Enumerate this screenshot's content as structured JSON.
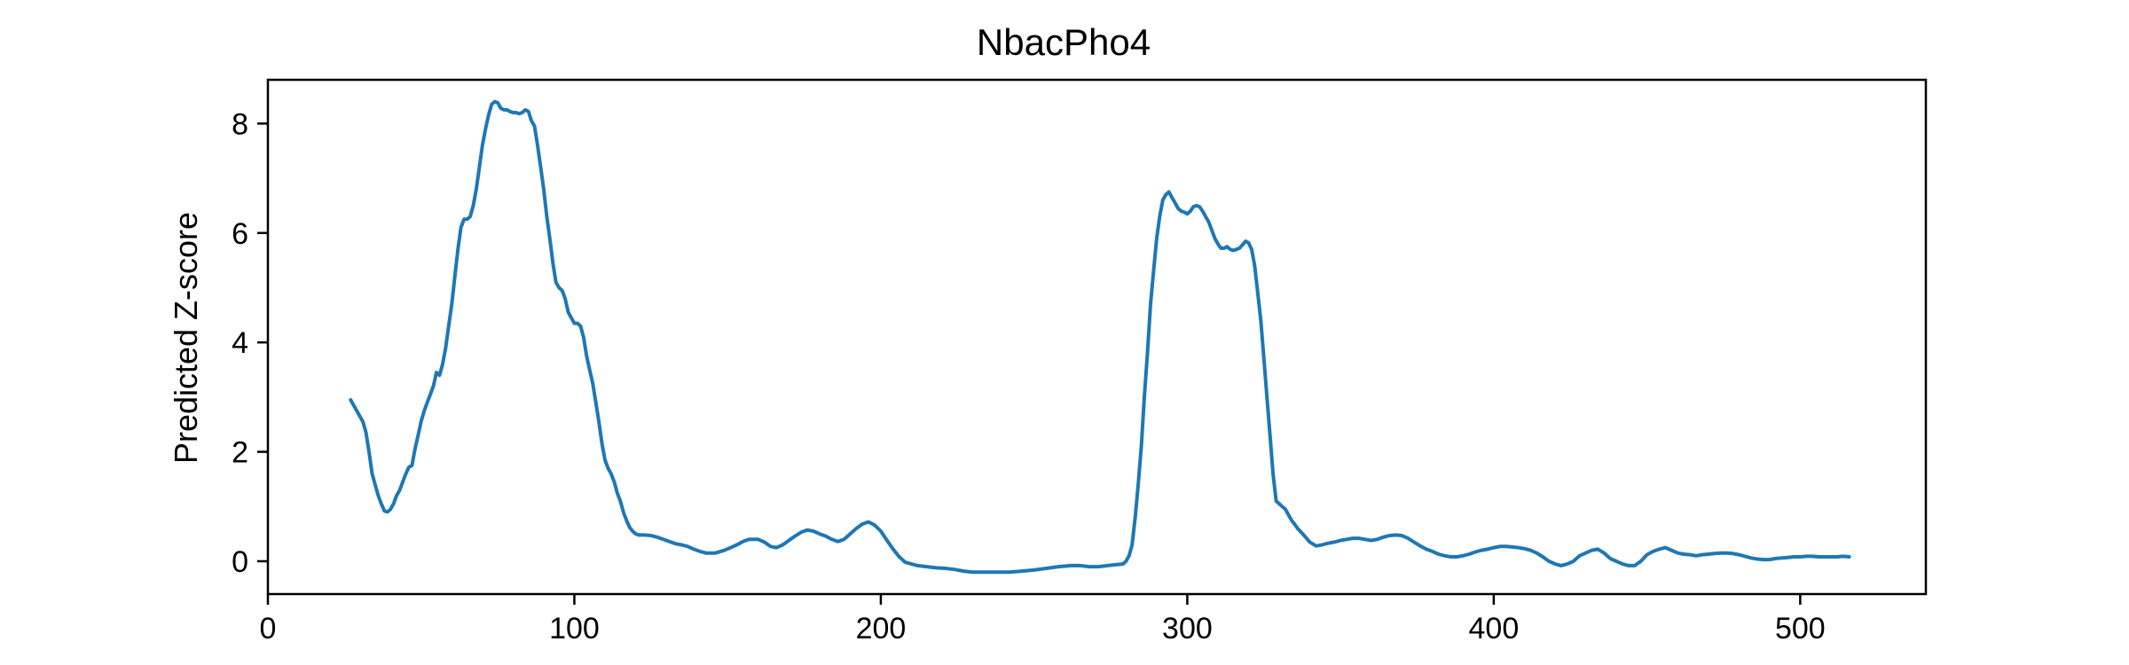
{
  "chart_data": {
    "type": "line",
    "title": "NbacPho4",
    "xlabel": "",
    "ylabel": "Predicted Z-score",
    "xlim": [
      0,
      541
    ],
    "ylim": [
      -0.6,
      8.8
    ],
    "xticks": [
      0,
      100,
      200,
      300,
      400,
      500
    ],
    "yticks": [
      0,
      2,
      4,
      6,
      8
    ],
    "grid": false,
    "line_color": "#1f77b4",
    "series": [
      {
        "points": [
          [
            27,
            2.95
          ],
          [
            29,
            2.75
          ],
          [
            31,
            2.55
          ],
          [
            32,
            2.35
          ],
          [
            33,
            2.0
          ],
          [
            34,
            1.6
          ],
          [
            35,
            1.4
          ],
          [
            36,
            1.2
          ],
          [
            37,
            1.05
          ],
          [
            38,
            0.92
          ],
          [
            39,
            0.9
          ],
          [
            40,
            0.95
          ],
          [
            41,
            1.05
          ],
          [
            42,
            1.2
          ],
          [
            43,
            1.3
          ],
          [
            44,
            1.45
          ],
          [
            45,
            1.6
          ],
          [
            46,
            1.72
          ],
          [
            47,
            1.75
          ],
          [
            48,
            2.05
          ],
          [
            49,
            2.3
          ],
          [
            50,
            2.55
          ],
          [
            51,
            2.75
          ],
          [
            52,
            2.9
          ],
          [
            53,
            3.05
          ],
          [
            54,
            3.2
          ],
          [
            55,
            3.45
          ],
          [
            56,
            3.4
          ],
          [
            57,
            3.6
          ],
          [
            58,
            3.9
          ],
          [
            59,
            4.3
          ],
          [
            60,
            4.7
          ],
          [
            61,
            5.2
          ],
          [
            62,
            5.7
          ],
          [
            63,
            6.1
          ],
          [
            64,
            6.25
          ],
          [
            65,
            6.25
          ],
          [
            66,
            6.3
          ],
          [
            67,
            6.5
          ],
          [
            68,
            6.8
          ],
          [
            69,
            7.2
          ],
          [
            70,
            7.6
          ],
          [
            71,
            7.9
          ],
          [
            72,
            8.15
          ],
          [
            73,
            8.35
          ],
          [
            74,
            8.4
          ],
          [
            75,
            8.38
          ],
          [
            76,
            8.28
          ],
          [
            77,
            8.25
          ],
          [
            78,
            8.25
          ],
          [
            79,
            8.22
          ],
          [
            80,
            8.2
          ],
          [
            81,
            8.2
          ],
          [
            82,
            8.18
          ],
          [
            83,
            8.2
          ],
          [
            84,
            8.25
          ],
          [
            85,
            8.22
          ],
          [
            86,
            8.05
          ],
          [
            87,
            7.95
          ],
          [
            88,
            7.6
          ],
          [
            89,
            7.2
          ],
          [
            90,
            6.8
          ],
          [
            91,
            6.3
          ],
          [
            92,
            5.9
          ],
          [
            93,
            5.45
          ],
          [
            94,
            5.1
          ],
          [
            95,
            5.0
          ],
          [
            96,
            4.95
          ],
          [
            97,
            4.8
          ],
          [
            98,
            4.55
          ],
          [
            99,
            4.45
          ],
          [
            100,
            4.35
          ],
          [
            101,
            4.35
          ],
          [
            102,
            4.3
          ],
          [
            103,
            4.1
          ],
          [
            104,
            3.75
          ],
          [
            105,
            3.5
          ],
          [
            106,
            3.25
          ],
          [
            107,
            2.9
          ],
          [
            108,
            2.55
          ],
          [
            109,
            2.15
          ],
          [
            110,
            1.85
          ],
          [
            111,
            1.7
          ],
          [
            112,
            1.6
          ],
          [
            113,
            1.45
          ],
          [
            114,
            1.25
          ],
          [
            115,
            1.1
          ],
          [
            116,
            0.9
          ],
          [
            117,
            0.75
          ],
          [
            118,
            0.62
          ],
          [
            119,
            0.55
          ],
          [
            120,
            0.5
          ],
          [
            121,
            0.48
          ],
          [
            123,
            0.48
          ],
          [
            125,
            0.47
          ],
          [
            127,
            0.44
          ],
          [
            129,
            0.4
          ],
          [
            131,
            0.36
          ],
          [
            133,
            0.32
          ],
          [
            135,
            0.3
          ],
          [
            137,
            0.27
          ],
          [
            139,
            0.22
          ],
          [
            141,
            0.18
          ],
          [
            143,
            0.15
          ],
          [
            146,
            0.15
          ],
          [
            149,
            0.2
          ],
          [
            151,
            0.25
          ],
          [
            153,
            0.3
          ],
          [
            155,
            0.36
          ],
          [
            157,
            0.4
          ],
          [
            160,
            0.4
          ],
          [
            162,
            0.35
          ],
          [
            164,
            0.27
          ],
          [
            166,
            0.25
          ],
          [
            168,
            0.3
          ],
          [
            170,
            0.38
          ],
          [
            172,
            0.46
          ],
          [
            174,
            0.53
          ],
          [
            176,
            0.57
          ],
          [
            178,
            0.55
          ],
          [
            180,
            0.5
          ],
          [
            182,
            0.46
          ],
          [
            184,
            0.4
          ],
          [
            186,
            0.36
          ],
          [
            188,
            0.4
          ],
          [
            190,
            0.5
          ],
          [
            192,
            0.6
          ],
          [
            194,
            0.68
          ],
          [
            196,
            0.72
          ],
          [
            198,
            0.66
          ],
          [
            200,
            0.55
          ],
          [
            202,
            0.38
          ],
          [
            204,
            0.22
          ],
          [
            206,
            0.08
          ],
          [
            208,
            -0.02
          ],
          [
            210,
            -0.05
          ],
          [
            212,
            -0.08
          ],
          [
            215,
            -0.1
          ],
          [
            218,
            -0.12
          ],
          [
            221,
            -0.13
          ],
          [
            224,
            -0.15
          ],
          [
            227,
            -0.18
          ],
          [
            230,
            -0.2
          ],
          [
            234,
            -0.2
          ],
          [
            238,
            -0.2
          ],
          [
            242,
            -0.2
          ],
          [
            246,
            -0.18
          ],
          [
            250,
            -0.16
          ],
          [
            254,
            -0.13
          ],
          [
            258,
            -0.1
          ],
          [
            262,
            -0.08
          ],
          [
            265,
            -0.08
          ],
          [
            268,
            -0.1
          ],
          [
            271,
            -0.1
          ],
          [
            274,
            -0.08
          ],
          [
            277,
            -0.06
          ],
          [
            279,
            -0.05
          ],
          [
            280,
            0.0
          ],
          [
            281,
            0.1
          ],
          [
            282,
            0.3
          ],
          [
            283,
            0.8
          ],
          [
            284,
            1.4
          ],
          [
            285,
            2.1
          ],
          [
            286,
            3.0
          ],
          [
            287,
            3.8
          ],
          [
            288,
            4.7
          ],
          [
            289,
            5.3
          ],
          [
            290,
            5.9
          ],
          [
            291,
            6.3
          ],
          [
            292,
            6.6
          ],
          [
            293,
            6.7
          ],
          [
            294,
            6.75
          ],
          [
            295,
            6.65
          ],
          [
            296,
            6.55
          ],
          [
            297,
            6.45
          ],
          [
            298,
            6.4
          ],
          [
            299,
            6.38
          ],
          [
            300,
            6.35
          ],
          [
            301,
            6.4
          ],
          [
            302,
            6.48
          ],
          [
            303,
            6.5
          ],
          [
            304,
            6.48
          ],
          [
            305,
            6.4
          ],
          [
            306,
            6.3
          ],
          [
            307,
            6.2
          ],
          [
            308,
            6.05
          ],
          [
            309,
            5.9
          ],
          [
            310,
            5.8
          ],
          [
            311,
            5.72
          ],
          [
            312,
            5.72
          ],
          [
            313,
            5.75
          ],
          [
            314,
            5.7
          ],
          [
            315,
            5.68
          ],
          [
            316,
            5.7
          ],
          [
            317,
            5.72
          ],
          [
            318,
            5.78
          ],
          [
            319,
            5.85
          ],
          [
            320,
            5.82
          ],
          [
            321,
            5.7
          ],
          [
            322,
            5.4
          ],
          [
            323,
            4.9
          ],
          [
            324,
            4.4
          ],
          [
            325,
            3.7
          ],
          [
            326,
            3.0
          ],
          [
            327,
            2.3
          ],
          [
            328,
            1.6
          ],
          [
            329,
            1.1
          ],
          [
            330,
            1.05
          ],
          [
            331,
            1.0
          ],
          [
            332,
            0.95
          ],
          [
            333,
            0.85
          ],
          [
            334,
            0.75
          ],
          [
            335,
            0.68
          ],
          [
            336,
            0.6
          ],
          [
            338,
            0.48
          ],
          [
            340,
            0.35
          ],
          [
            342,
            0.28
          ],
          [
            344,
            0.3
          ],
          [
            346,
            0.33
          ],
          [
            348,
            0.35
          ],
          [
            350,
            0.38
          ],
          [
            352,
            0.4
          ],
          [
            354,
            0.42
          ],
          [
            356,
            0.42
          ],
          [
            358,
            0.4
          ],
          [
            360,
            0.38
          ],
          [
            362,
            0.4
          ],
          [
            364,
            0.44
          ],
          [
            366,
            0.47
          ],
          [
            368,
            0.48
          ],
          [
            370,
            0.47
          ],
          [
            372,
            0.42
          ],
          [
            374,
            0.35
          ],
          [
            376,
            0.28
          ],
          [
            378,
            0.22
          ],
          [
            380,
            0.18
          ],
          [
            382,
            0.13
          ],
          [
            384,
            0.1
          ],
          [
            386,
            0.08
          ],
          [
            388,
            0.08
          ],
          [
            390,
            0.1
          ],
          [
            392,
            0.13
          ],
          [
            394,
            0.17
          ],
          [
            396,
            0.2
          ],
          [
            398,
            0.22
          ],
          [
            400,
            0.25
          ],
          [
            402,
            0.27
          ],
          [
            404,
            0.27
          ],
          [
            406,
            0.26
          ],
          [
            408,
            0.25
          ],
          [
            410,
            0.23
          ],
          [
            412,
            0.2
          ],
          [
            414,
            0.15
          ],
          [
            416,
            0.08
          ],
          [
            418,
            0.0
          ],
          [
            420,
            -0.05
          ],
          [
            422,
            -0.08
          ],
          [
            424,
            -0.05
          ],
          [
            426,
            0.0
          ],
          [
            428,
            0.1
          ],
          [
            430,
            0.15
          ],
          [
            432,
            0.2
          ],
          [
            434,
            0.22
          ],
          [
            436,
            0.15
          ],
          [
            438,
            0.05
          ],
          [
            440,
            0.0
          ],
          [
            442,
            -0.05
          ],
          [
            444,
            -0.08
          ],
          [
            446,
            -0.08
          ],
          [
            448,
            0.0
          ],
          [
            450,
            0.12
          ],
          [
            452,
            0.18
          ],
          [
            454,
            0.22
          ],
          [
            456,
            0.25
          ],
          [
            458,
            0.2
          ],
          [
            460,
            0.15
          ],
          [
            462,
            0.13
          ],
          [
            464,
            0.12
          ],
          [
            466,
            0.1
          ],
          [
            468,
            0.12
          ],
          [
            470,
            0.13
          ],
          [
            472,
            0.14
          ],
          [
            474,
            0.15
          ],
          [
            476,
            0.15
          ],
          [
            478,
            0.14
          ],
          [
            480,
            0.12
          ],
          [
            482,
            0.09
          ],
          [
            484,
            0.06
          ],
          [
            486,
            0.04
          ],
          [
            488,
            0.03
          ],
          [
            490,
            0.03
          ],
          [
            492,
            0.05
          ],
          [
            494,
            0.06
          ],
          [
            496,
            0.07
          ],
          [
            498,
            0.08
          ],
          [
            500,
            0.08
          ],
          [
            502,
            0.09
          ],
          [
            504,
            0.09
          ],
          [
            506,
            0.08
          ],
          [
            508,
            0.08
          ],
          [
            510,
            0.08
          ],
          [
            512,
            0.08
          ],
          [
            514,
            0.09
          ],
          [
            516,
            0.08
          ]
        ]
      }
    ]
  }
}
